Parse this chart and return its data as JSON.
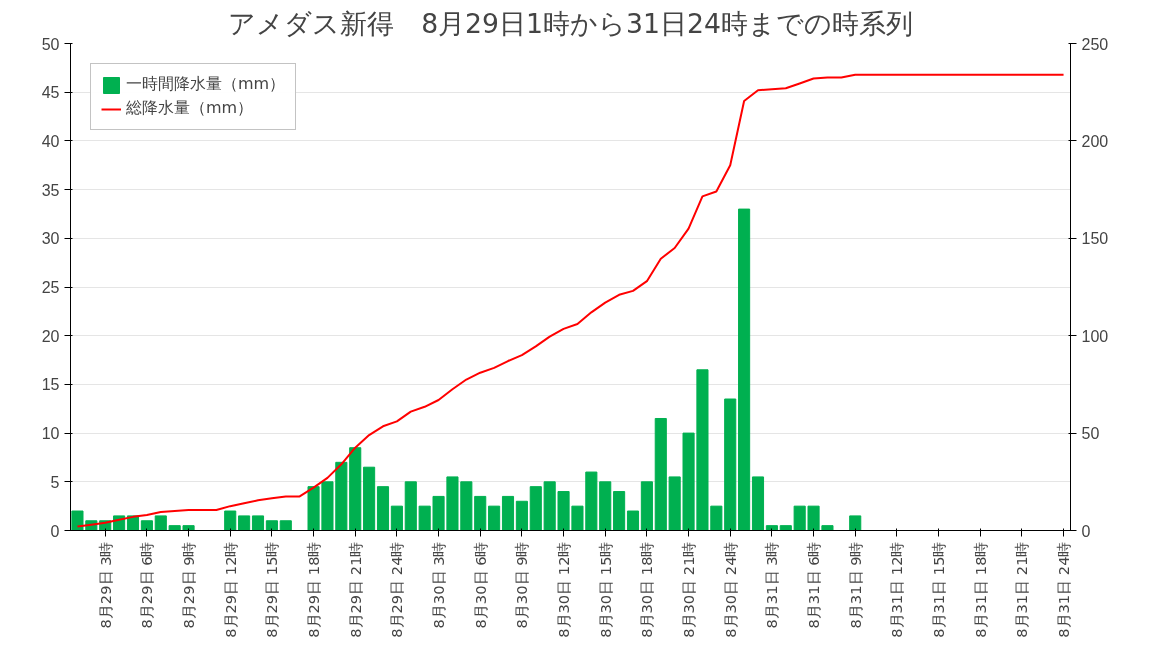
{
  "chart_data": {
    "type": "bar",
    "title": "アメダス新得　8月29日1時から31日24時までの時系列",
    "categories": [
      null,
      null,
      "8月29日 3時",
      null,
      null,
      "8月29日 6時",
      null,
      null,
      "8月29日 9時",
      null,
      null,
      "8月29日 12時",
      null,
      null,
      "8月29日 15時",
      null,
      null,
      "8月29日 18時",
      null,
      null,
      "8月29日 21時",
      null,
      null,
      "8月29日 24時",
      null,
      null,
      "8月30日 3時",
      null,
      null,
      "8月30日 6時",
      null,
      null,
      "8月30日 9時",
      null,
      null,
      "8月30日 12時",
      null,
      null,
      "8月30日 15時",
      null,
      null,
      "8月30日 18時",
      null,
      null,
      "8月30日 21時",
      null,
      null,
      "8月30日 24時",
      null,
      null,
      "8月31日 3時",
      null,
      null,
      "8月31日 6時",
      null,
      null,
      "8月31日 9時",
      null,
      null,
      "8月31日 12時",
      null,
      null,
      "8月31日 15時",
      null,
      null,
      "8月31日 18時",
      null,
      null,
      "8月31日 21時",
      null,
      null,
      "8月31日 24時"
    ],
    "series": [
      {
        "name": "一時間降水量（mm）",
        "color": "#00b050",
        "values": [
          2,
          1,
          1,
          1.5,
          1.5,
          1,
          1.5,
          0.5,
          0.5,
          0,
          0,
          2,
          1.5,
          1.5,
          1,
          1,
          0,
          4.5,
          5,
          7,
          8.5,
          6.5,
          4.5,
          2.5,
          5,
          2.5,
          3.5,
          5.5,
          5,
          3.5,
          2.5,
          3.5,
          3,
          4.5,
          5,
          4,
          2.5,
          6,
          5,
          4,
          2,
          5,
          11.5,
          5.5,
          10,
          16.5,
          2.5,
          13.5,
          33,
          5.5,
          0.5,
          0.5,
          2.5,
          2.5,
          0.5,
          0,
          1.5,
          0,
          0,
          0,
          0,
          0,
          0,
          0,
          0,
          0,
          0,
          0,
          0,
          0,
          0,
          0
        ]
      },
      {
        "name": "総降水量（mm）",
        "type": "line",
        "axis": "y2",
        "color": "#ff0000",
        "values": [
          2,
          3,
          4,
          5.5,
          7,
          8,
          9.5,
          10,
          10.5,
          10.5,
          10.5,
          12.5,
          14,
          15.5,
          16.5,
          17.5,
          17.5,
          22,
          27,
          34,
          42.5,
          49,
          53.5,
          56,
          61,
          63.5,
          67,
          72.5,
          77.5,
          81,
          83.5,
          87,
          90,
          94.5,
          99.5,
          103.5,
          106,
          112,
          117,
          121,
          123,
          128,
          139.5,
          145,
          155,
          171.5,
          174,
          187.5,
          220.5,
          226,
          226.5,
          227,
          229.5,
          232,
          232.5,
          232.5,
          234,
          234,
          234,
          234,
          234,
          234,
          234,
          234,
          234,
          234,
          234,
          234,
          234,
          234,
          234,
          234
        ]
      }
    ],
    "ylim": [
      0,
      50
    ],
    "yticks": [
      0,
      5,
      10,
      15,
      20,
      25,
      30,
      35,
      40,
      45,
      50
    ],
    "y2lim": [
      0,
      250
    ],
    "y2ticks": [
      0,
      50,
      100,
      150,
      200,
      250
    ],
    "grid": "y",
    "legend": "top left"
  }
}
